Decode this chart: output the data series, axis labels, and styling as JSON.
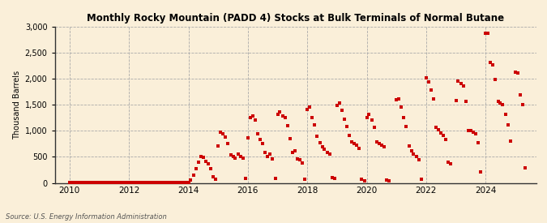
{
  "title": "Monthly Rocky Mountain (PADD 4) Stocks at Bulk Terminals of Normal Butane",
  "ylabel": "Thousand Barrels",
  "source": "Source: U.S. Energy Information Administration",
  "background_color": "#faefd9",
  "marker_color": "#cc0000",
  "marker": "s",
  "markersize": 3.5,
  "xlim": [
    2009.5,
    2025.7
  ],
  "ylim": [
    0,
    3000
  ],
  "yticks": [
    0,
    500,
    1000,
    1500,
    2000,
    2500,
    3000
  ],
  "xticks": [
    2010,
    2012,
    2014,
    2016,
    2018,
    2020,
    2022,
    2024
  ],
  "data": [
    [
      2010.0,
      5
    ],
    [
      2010.08,
      6
    ],
    [
      2010.17,
      5
    ],
    [
      2010.25,
      4
    ],
    [
      2010.33,
      5
    ],
    [
      2010.42,
      6
    ],
    [
      2010.5,
      8
    ],
    [
      2010.58,
      7
    ],
    [
      2010.67,
      5
    ],
    [
      2010.75,
      6
    ],
    [
      2010.83,
      5
    ],
    [
      2010.92,
      4
    ],
    [
      2011.0,
      5
    ],
    [
      2011.08,
      7
    ],
    [
      2011.17,
      6
    ],
    [
      2011.25,
      5
    ],
    [
      2011.33,
      6
    ],
    [
      2011.42,
      8
    ],
    [
      2011.5,
      7
    ],
    [
      2011.58,
      5
    ],
    [
      2011.67,
      4
    ],
    [
      2011.75,
      6
    ],
    [
      2011.83,
      5
    ],
    [
      2011.92,
      4
    ],
    [
      2012.0,
      5
    ],
    [
      2012.08,
      6
    ],
    [
      2012.17,
      5
    ],
    [
      2012.25,
      7
    ],
    [
      2012.33,
      5
    ],
    [
      2012.42,
      4
    ],
    [
      2012.5,
      5
    ],
    [
      2012.58,
      6
    ],
    [
      2012.67,
      5
    ],
    [
      2012.75,
      4
    ],
    [
      2012.83,
      5
    ],
    [
      2012.92,
      4
    ],
    [
      2013.0,
      5
    ],
    [
      2013.08,
      4
    ],
    [
      2013.17,
      6
    ],
    [
      2013.25,
      5
    ],
    [
      2013.33,
      4
    ],
    [
      2013.42,
      5
    ],
    [
      2013.5,
      6
    ],
    [
      2013.58,
      7
    ],
    [
      2013.67,
      5
    ],
    [
      2013.75,
      4
    ],
    [
      2013.83,
      5
    ],
    [
      2013.92,
      3
    ],
    [
      2014.0,
      10
    ],
    [
      2014.08,
      60
    ],
    [
      2014.17,
      150
    ],
    [
      2014.25,
      280
    ],
    [
      2014.33,
      390
    ],
    [
      2014.42,
      510
    ],
    [
      2014.5,
      490
    ],
    [
      2014.58,
      420
    ],
    [
      2014.67,
      360
    ],
    [
      2014.75,
      270
    ],
    [
      2014.83,
      110
    ],
    [
      2014.92,
      70
    ],
    [
      2015.0,
      710
    ],
    [
      2015.08,
      970
    ],
    [
      2015.17,
      940
    ],
    [
      2015.25,
      880
    ],
    [
      2015.33,
      760
    ],
    [
      2015.42,
      540
    ],
    [
      2015.5,
      500
    ],
    [
      2015.58,
      480
    ],
    [
      2015.67,
      560
    ],
    [
      2015.75,
      510
    ],
    [
      2015.83,
      470
    ],
    [
      2015.92,
      80
    ],
    [
      2016.0,
      860
    ],
    [
      2016.08,
      1260
    ],
    [
      2016.17,
      1290
    ],
    [
      2016.25,
      1210
    ],
    [
      2016.33,
      940
    ],
    [
      2016.42,
      840
    ],
    [
      2016.5,
      750
    ],
    [
      2016.58,
      580
    ],
    [
      2016.67,
      510
    ],
    [
      2016.75,
      550
    ],
    [
      2016.83,
      460
    ],
    [
      2016.92,
      90
    ],
    [
      2017.0,
      1310
    ],
    [
      2017.08,
      1370
    ],
    [
      2017.17,
      1290
    ],
    [
      2017.25,
      1260
    ],
    [
      2017.33,
      1100
    ],
    [
      2017.42,
      850
    ],
    [
      2017.5,
      580
    ],
    [
      2017.58,
      610
    ],
    [
      2017.67,
      460
    ],
    [
      2017.75,
      440
    ],
    [
      2017.83,
      380
    ],
    [
      2017.92,
      75
    ],
    [
      2018.0,
      1410
    ],
    [
      2018.08,
      1460
    ],
    [
      2018.17,
      1260
    ],
    [
      2018.25,
      1110
    ],
    [
      2018.33,
      900
    ],
    [
      2018.42,
      770
    ],
    [
      2018.5,
      690
    ],
    [
      2018.58,
      650
    ],
    [
      2018.67,
      590
    ],
    [
      2018.75,
      560
    ],
    [
      2018.83,
      100
    ],
    [
      2018.92,
      80
    ],
    [
      2019.0,
      1490
    ],
    [
      2019.08,
      1530
    ],
    [
      2019.17,
      1390
    ],
    [
      2019.25,
      1220
    ],
    [
      2019.33,
      1080
    ],
    [
      2019.42,
      910
    ],
    [
      2019.5,
      790
    ],
    [
      2019.58,
      750
    ],
    [
      2019.67,
      730
    ],
    [
      2019.75,
      660
    ],
    [
      2019.83,
      65
    ],
    [
      2019.92,
      35
    ],
    [
      2020.0,
      1260
    ],
    [
      2020.08,
      1310
    ],
    [
      2020.17,
      1210
    ],
    [
      2020.25,
      1060
    ],
    [
      2020.33,
      790
    ],
    [
      2020.42,
      760
    ],
    [
      2020.5,
      720
    ],
    [
      2020.58,
      690
    ],
    [
      2020.67,
      55
    ],
    [
      2020.75,
      45
    ],
    [
      2021.0,
      1590
    ],
    [
      2021.08,
      1610
    ],
    [
      2021.17,
      1460
    ],
    [
      2021.25,
      1260
    ],
    [
      2021.33,
      1080
    ],
    [
      2021.42,
      710
    ],
    [
      2021.5,
      610
    ],
    [
      2021.58,
      550
    ],
    [
      2021.67,
      510
    ],
    [
      2021.75,
      440
    ],
    [
      2021.83,
      65
    ],
    [
      2022.0,
      2020
    ],
    [
      2022.08,
      1940
    ],
    [
      2022.17,
      1790
    ],
    [
      2022.25,
      1610
    ],
    [
      2022.33,
      1060
    ],
    [
      2022.42,
      1020
    ],
    [
      2022.5,
      960
    ],
    [
      2022.58,
      910
    ],
    [
      2022.67,
      840
    ],
    [
      2022.75,
      400
    ],
    [
      2022.83,
      360
    ],
    [
      2023.0,
      1580
    ],
    [
      2023.08,
      1960
    ],
    [
      2023.17,
      1910
    ],
    [
      2023.25,
      1860
    ],
    [
      2023.33,
      1570
    ],
    [
      2023.42,
      1010
    ],
    [
      2023.5,
      1000
    ],
    [
      2023.58,
      970
    ],
    [
      2023.67,
      950
    ],
    [
      2023.75,
      770
    ],
    [
      2023.83,
      210
    ],
    [
      2024.0,
      2870
    ],
    [
      2024.08,
      2880
    ],
    [
      2024.17,
      2320
    ],
    [
      2024.25,
      2260
    ],
    [
      2024.33,
      1980
    ],
    [
      2024.42,
      1570
    ],
    [
      2024.5,
      1530
    ],
    [
      2024.58,
      1510
    ],
    [
      2024.67,
      1310
    ],
    [
      2024.75,
      1110
    ],
    [
      2024.83,
      810
    ],
    [
      2025.0,
      2130
    ],
    [
      2025.08,
      2110
    ],
    [
      2025.17,
      1690
    ],
    [
      2025.25,
      1510
    ],
    [
      2025.33,
      290
    ]
  ]
}
